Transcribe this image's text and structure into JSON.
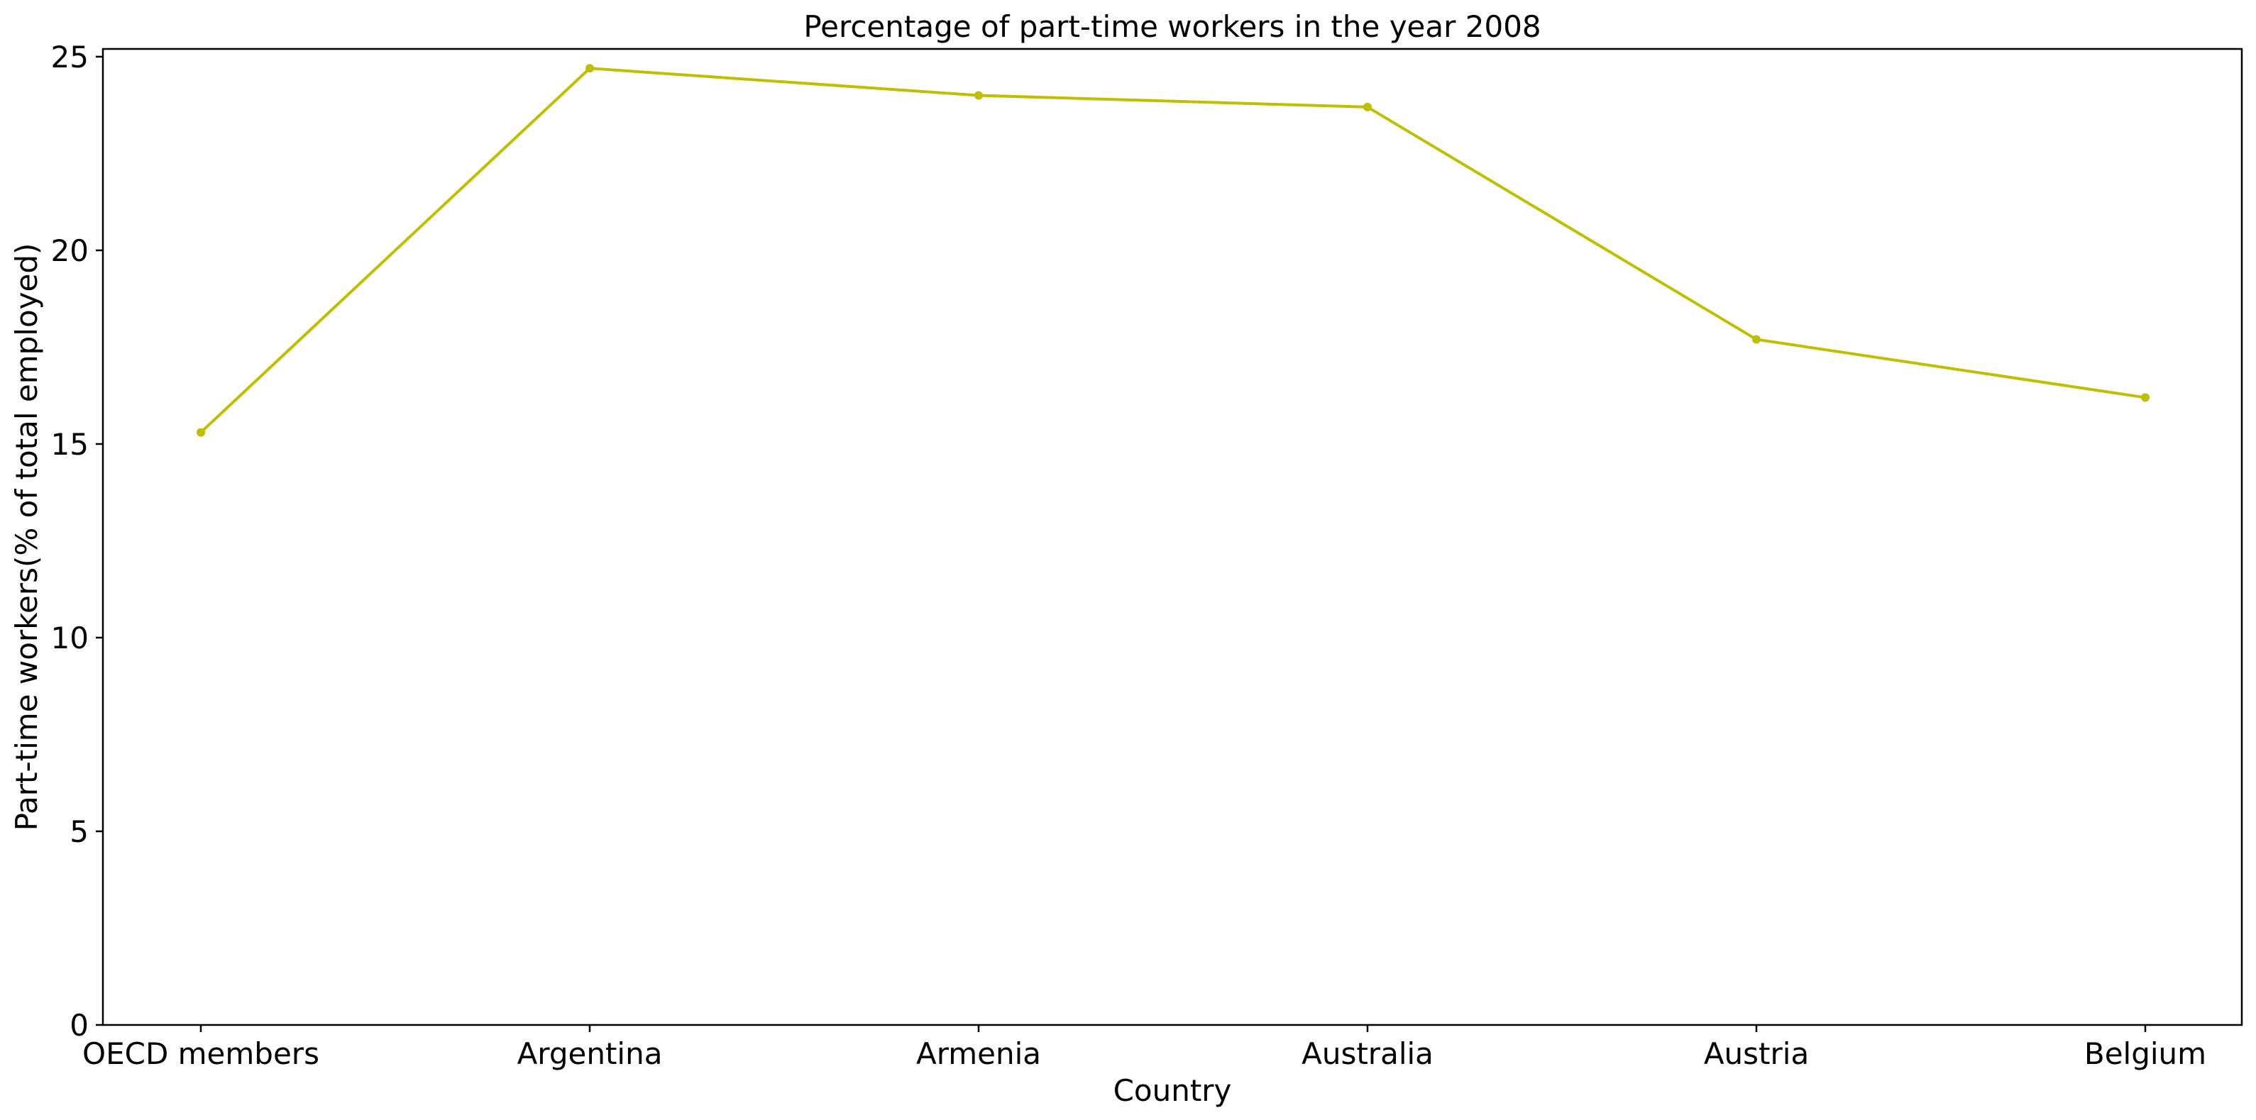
{
  "chart_data": {
    "type": "line",
    "title": "Percentage of part-time workers in the year 2008",
    "xlabel": "Country",
    "ylabel": "Part-time workers(% of total employed)",
    "categories": [
      "OECD members",
      "Argentina",
      "Armenia",
      "Australia",
      "Austria",
      "Belgium"
    ],
    "series": [
      {
        "values": [
          15.3,
          24.7,
          24.0,
          23.7,
          17.7,
          16.2
        ],
        "color": "#bfbf00"
      }
    ],
    "ylim": [
      0,
      25.2
    ],
    "yticks": [
      0,
      5,
      10,
      15,
      20,
      25
    ],
    "grid": false,
    "legend": "none"
  }
}
